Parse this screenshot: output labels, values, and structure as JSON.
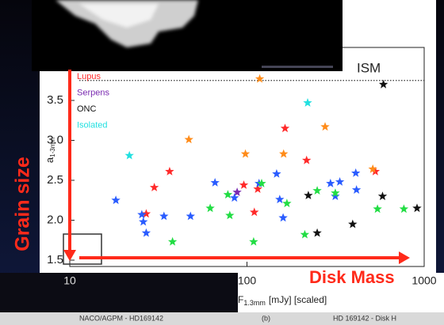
{
  "chart_data": {
    "type": "scatter",
    "x_log": true,
    "xlim": [
      10,
      1000
    ],
    "ylim": [
      1.5,
      3.9
    ],
    "xticks": [
      10,
      100,
      1000
    ],
    "yticks": [
      1.5,
      {
        "value": 2,
        "label": "2.0"
      },
      2.5,
      {
        "value": 3,
        "label": "3.0"
      },
      3.5
    ],
    "reference_line": {
      "label": "ISM",
      "value": 3.75
    },
    "y_label": "Grain size",
    "y_sublabel": {
      "base": "a",
      "sub": "1-3mm"
    },
    "x_title": "Disk Mass",
    "x_label": {
      "base": "F",
      "sub": "1.3mm",
      "rest": "[mJy] [scaled]"
    },
    "series": [
      {
        "name": "Lupus",
        "color": "#ff2a2a",
        "x": [
          27,
          30,
          36.6,
          96,
          110,
          115,
          164,
          217,
          530
        ],
        "values": [
          2.08,
          2.41,
          2.61,
          2.44,
          2.1,
          2.39,
          3.15,
          2.75,
          2.61
        ]
      },
      {
        "name": "Serpens",
        "color": "#7a2ab0",
        "x": [
          88
        ],
        "values": [
          2.35
        ]
      },
      {
        "name": "ONC",
        "color": "#111111",
        "x": [
          589,
          222,
          249,
          395,
          582,
          911
        ],
        "values": [
          3.7,
          2.31,
          1.84,
          1.95,
          2.3,
          2.15
        ]
      },
      {
        "name": "Isolated",
        "color": "#22e0e0",
        "x": [
          21.7,
          220
        ],
        "values": [
          2.81,
          3.47
        ]
      },
      {
        "color": "#ff8c1a",
        "x": [
          47,
          98,
          161,
          276,
          513,
          118
        ],
        "values": [
          3.01,
          2.83,
          2.83,
          3.17,
          2.64,
          3.77
        ]
      },
      {
        "color": "#2a5cff",
        "x": [
          18.2,
          25.5,
          26,
          27,
          34,
          48,
          66,
          85,
          117,
          147,
          153,
          160,
          296,
          315,
          334,
          411,
          415
        ],
        "values": [
          2.25,
          2.07,
          1.98,
          1.84,
          2.05,
          2.05,
          2.47,
          2.28,
          2.46,
          2.58,
          2.26,
          2.03,
          2.46,
          2.3,
          2.48,
          2.59,
          2.38
        ]
      },
      {
        "color": "#22dd44",
        "x": [
          38,
          62,
          78,
          80,
          109,
          121,
          212,
          249,
          315,
          545,
          768,
          168
        ],
        "values": [
          1.73,
          2.15,
          2.32,
          2.06,
          1.73,
          2.46,
          1.82,
          2.37,
          2.34,
          2.14,
          2.14,
          2.21
        ]
      }
    ],
    "captions": [
      "NACO/AGPM - HD169142",
      "(b)",
      "HD 169142 - Disk H"
    ]
  }
}
